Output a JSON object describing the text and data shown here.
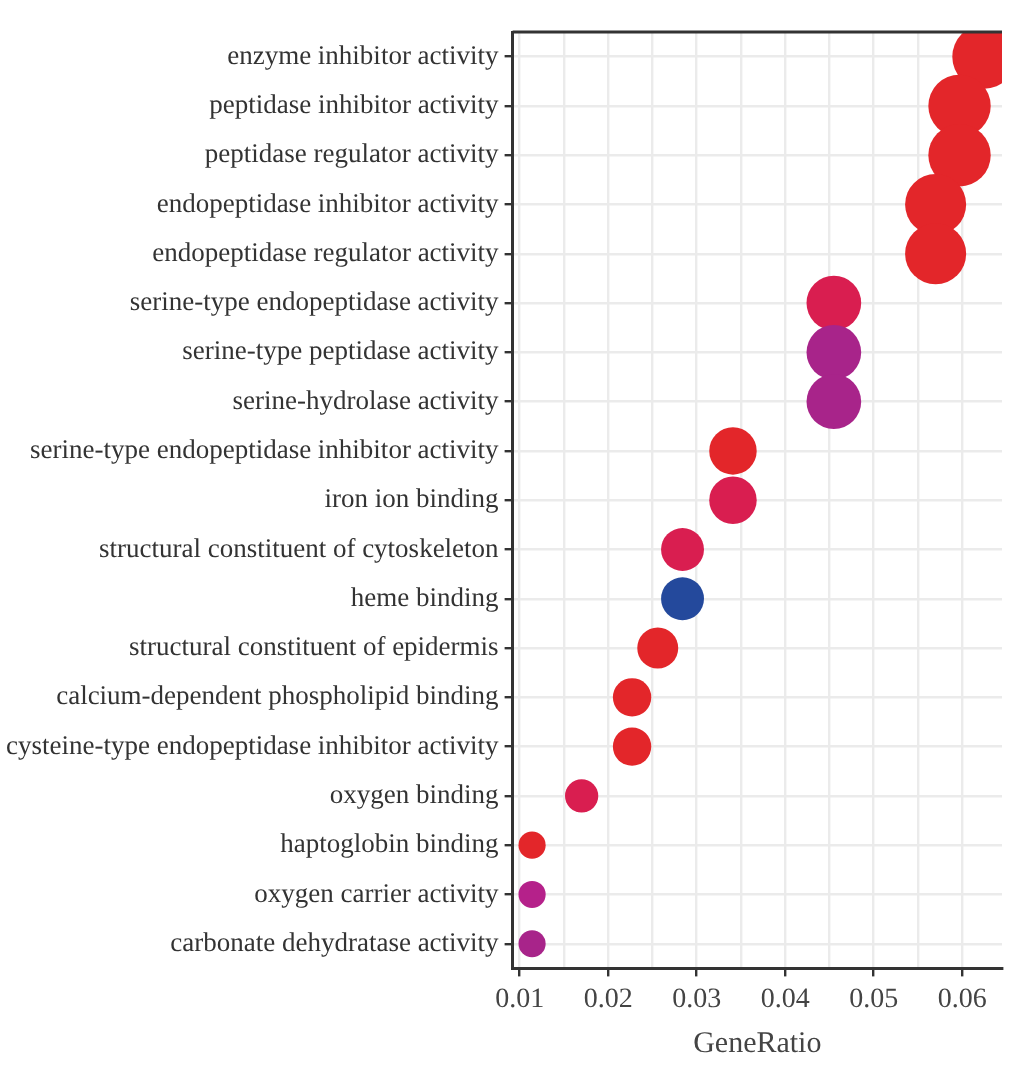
{
  "chart_data": {
    "type": "bubble",
    "xlabel": "GeneRatio",
    "categories": [
      "enzyme inhibitor activity",
      "peptidase inhibitor activity",
      "peptidase regulator activity",
      "endopeptidase inhibitor activity",
      "endopeptidase regulator activity",
      "serine-type endopeptidase activity",
      "serine-type peptidase activity",
      "serine-hydrolase activity",
      "serine-type endopeptidase inhibitor activity",
      "iron ion binding",
      "structural constituent of cytoskeleton",
      "heme binding",
      "structural constituent of epidermis",
      "calcium-dependent phospholipid binding",
      "cysteine-type endopeptidase inhibitor activity",
      "oxygen binding",
      "haptoglobin binding",
      "oxygen carrier activity",
      "carbonate dehydratase activity"
    ],
    "values": [
      0.0625,
      0.0597,
      0.0597,
      0.057,
      0.057,
      0.0455,
      0.0455,
      0.0455,
      0.0341,
      0.0341,
      0.0284,
      0.0284,
      0.0256,
      0.0227,
      0.0227,
      0.017,
      0.0114,
      0.0114,
      0.0114
    ],
    "sizes": [
      1,
      0.95,
      0.95,
      0.91,
      0.91,
      0.73,
      0.73,
      0.73,
      0.55,
      0.55,
      0.45,
      0.45,
      0.41,
      0.36,
      0.36,
      0.27,
      0.18,
      0.18,
      0.18
    ],
    "colors": [
      "#e3262a",
      "#e3262a",
      "#e3262a",
      "#e3262a",
      "#e3262a",
      "#d91e50",
      "#a8248a",
      "#a8248a",
      "#e3262a",
      "#d91e50",
      "#d91e50",
      "#24499c",
      "#e3262a",
      "#e3262a",
      "#e3262a",
      "#d91e50",
      "#e3262a",
      "#b5218a",
      "#a8248a"
    ],
    "orientation": "horizontal",
    "xlim": [
      0.0092,
      0.0645
    ],
    "xticks": [
      0.01,
      {
        "value": 0.015,
        "label": null
      },
      0.02,
      {
        "value": 0.025,
        "label": null
      },
      0.03,
      {
        "value": 0.035,
        "label": null
      },
      0.04,
      {
        "value": 0.045,
        "label": null
      },
      0.05,
      {
        "value": 0.055,
        "label": null
      },
      0.06
    ],
    "grid": true,
    "legend": false
  }
}
